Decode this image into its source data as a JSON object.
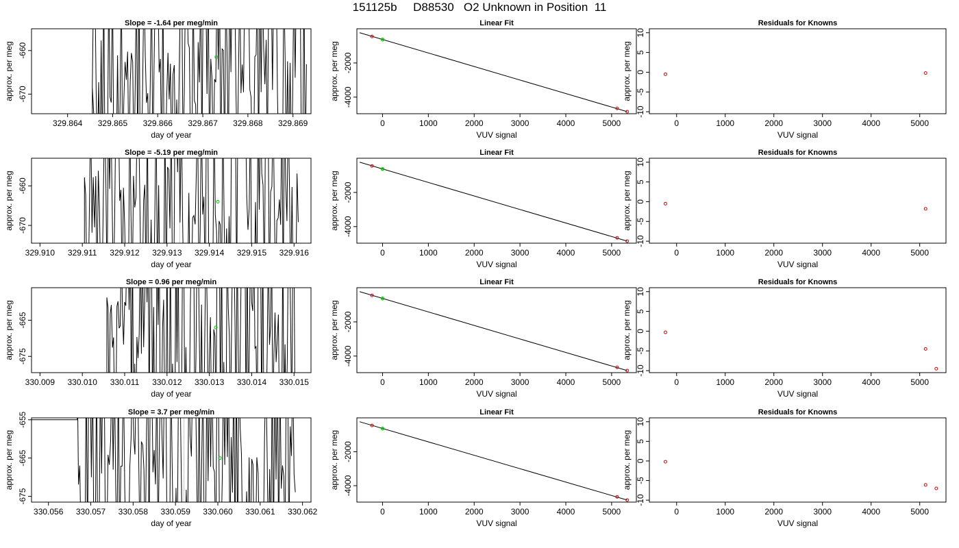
{
  "figure": {
    "title": "151125b     D88530   O2 Unknown in Position  11"
  },
  "chart_data": [
    {
      "row": 1,
      "col": 1,
      "type": "line",
      "title": "Slope =  -1.64  per meg/min",
      "xlabel": "day of year",
      "ylabel": "approx. per meg",
      "xlim": [
        329.8632,
        329.8694
      ],
      "ylim": [
        -674.5,
        -655
      ],
      "xticks": [
        329.864,
        329.865,
        329.866,
        329.867,
        329.868,
        329.869
      ],
      "xtick_labels": [
        "329.864",
        "329.865",
        "329.866",
        "329.867",
        "329.868",
        "329.869"
      ],
      "yticks": [
        -670,
        -660
      ],
      "ytick_labels": [
        "-670",
        "-660"
      ],
      "start": 329.86455,
      "end": 329.8693,
      "seed": 11,
      "initial_level": -674.5,
      "step_x": 329.86455,
      "step_top": -668.5,
      "step_end": 329.86458,
      "grey_line_x": 329.8665,
      "marker": {
        "x": 329.8673,
        "y": -661.5,
        "color": "#00cc00"
      }
    },
    {
      "row": 1,
      "col": 2,
      "type": "scatter+line",
      "title": "Linear Fit",
      "xlabel": "VUV signal",
      "ylabel": "approx. per meg",
      "xlim": [
        -560,
        5540
      ],
      "ylim": [
        -4970,
        0
      ],
      "xticks": [
        0,
        1000,
        2000,
        3000,
        4000,
        5000
      ],
      "xtick_labels": [
        "0",
        "1000",
        "2000",
        "3000",
        "4000",
        "5000"
      ],
      "yticks": [
        -4000,
        -2000
      ],
      "ytick_labels": [
        "-4000",
        "-2000"
      ],
      "line": {
        "x": [
          -500,
          5340
        ],
        "y": [
          -230,
          -4850
        ]
      },
      "knowns": {
        "x": [
          -230,
          5120,
          5340
        ],
        "y": [
          -450,
          -4660,
          -4850
        ]
      },
      "unknown": {
        "x": [
          0,
          0
        ],
        "y": [
          -620,
          -640
        ]
      }
    },
    {
      "row": 1,
      "col": 3,
      "type": "scatter",
      "title": "Residuals for Knowns",
      "xlabel": "VUV signal",
      "ylabel": "approx. per meg",
      "xlim": [
        -560,
        5540
      ],
      "ylim": [
        -10.5,
        11
      ],
      "xticks": [
        0,
        1000,
        2000,
        3000,
        4000,
        5000
      ],
      "xtick_labels": [
        "0",
        "1000",
        "2000",
        "3000",
        "4000",
        "5000"
      ],
      "yticks": [
        -10,
        -5,
        0,
        5,
        10
      ],
      "ytick_labels": [
        "-10",
        "-5",
        "0",
        "5",
        "10"
      ],
      "points": {
        "x": [
          -230,
          5120
        ],
        "y": [
          -0.5,
          -0.2
        ]
      }
    },
    {
      "row": 2,
      "col": 1,
      "type": "line",
      "title": "Slope =  -5.19  per meg/min",
      "xlabel": "day of year",
      "ylabel": "approx. per meg",
      "xlim": [
        329.9098,
        329.9164
      ],
      "ylim": [
        -674.5,
        -653
      ],
      "xticks": [
        329.91,
        329.911,
        329.912,
        329.913,
        329.914,
        329.915,
        329.916
      ],
      "xtick_labels": [
        "329.910",
        "329.911",
        "329.912",
        "329.913",
        "329.914",
        "329.915",
        "329.916"
      ],
      "yticks": [
        -670,
        -660
      ],
      "ytick_labels": [
        "-670",
        "-660"
      ],
      "start": 329.91105,
      "end": 329.9161,
      "seed": 23,
      "initial_level": -674.5,
      "grey_line_x": 329.9133,
      "marker": {
        "x": 329.9142,
        "y": -664,
        "color": "#00cc00"
      }
    },
    {
      "row": 2,
      "col": 2,
      "type": "scatter+line",
      "title": "Linear Fit",
      "xlabel": "VUV signal",
      "ylabel": "approx. per meg",
      "xlim": [
        -560,
        5540
      ],
      "ylim": [
        -4970,
        0
      ],
      "xticks": [
        0,
        1000,
        2000,
        3000,
        4000,
        5000
      ],
      "xtick_labels": [
        "0",
        "1000",
        "2000",
        "3000",
        "4000",
        "5000"
      ],
      "yticks": [
        -4000,
        -2000
      ],
      "ytick_labels": [
        "-4000",
        "-2000"
      ],
      "line": {
        "x": [
          -500,
          5340
        ],
        "y": [
          -230,
          -4850
        ]
      },
      "knowns": {
        "x": [
          -230,
          5120,
          5340
        ],
        "y": [
          -450,
          -4660,
          -4850
        ]
      },
      "unknown": {
        "x": [
          0,
          0
        ],
        "y": [
          -620,
          -640
        ]
      }
    },
    {
      "row": 2,
      "col": 3,
      "type": "scatter",
      "title": "Residuals for Knowns",
      "xlabel": "VUV signal",
      "ylabel": "approx. per meg",
      "xlim": [
        -560,
        5540
      ],
      "ylim": [
        -10.5,
        11
      ],
      "xticks": [
        0,
        1000,
        2000,
        3000,
        4000,
        5000
      ],
      "xtick_labels": [
        "0",
        "1000",
        "2000",
        "3000",
        "4000",
        "5000"
      ],
      "yticks": [
        -10,
        -5,
        0,
        5,
        10
      ],
      "ytick_labels": [
        "-10",
        "-5",
        "0",
        "5",
        "10"
      ],
      "points": {
        "x": [
          -230,
          5120
        ],
        "y": [
          -0.5,
          -1.8
        ]
      }
    },
    {
      "row": 3,
      "col": 1,
      "type": "line",
      "title": "Slope =  0.96  per meg/min",
      "xlabel": "day of year",
      "ylabel": "approx. per meg",
      "xlim": [
        330.0088,
        330.0154
      ],
      "ylim": [
        -679.5,
        -656
      ],
      "xticks": [
        330.009,
        330.01,
        330.011,
        330.012,
        330.013,
        330.014,
        330.015
      ],
      "xtick_labels": [
        "330.009",
        "330.010",
        "330.011",
        "330.012",
        "330.013",
        "330.014",
        "330.015"
      ],
      "yticks": [
        -675,
        -665
      ],
      "ytick_labels": [
        "-675",
        "-665"
      ],
      "start": 330.01058,
      "end": 330.01505,
      "seed": 37,
      "initial_level": -679.5,
      "grey_line_x": 330.0122,
      "marker": {
        "x": 330.01315,
        "y": -667,
        "color": "#00cc00"
      }
    },
    {
      "row": 3,
      "col": 2,
      "type": "scatter+line",
      "title": "Linear Fit",
      "xlabel": "VUV signal",
      "ylabel": "approx. per meg",
      "xlim": [
        -560,
        5540
      ],
      "ylim": [
        -4970,
        0
      ],
      "xticks": [
        0,
        1000,
        2000,
        3000,
        4000,
        5000
      ],
      "xtick_labels": [
        "0",
        "1000",
        "2000",
        "3000",
        "4000",
        "5000"
      ],
      "yticks": [
        -4000,
        -2000
      ],
      "ytick_labels": [
        "-4000",
        "-2000"
      ],
      "line": {
        "x": [
          -500,
          5340
        ],
        "y": [
          -230,
          -4850
        ]
      },
      "knowns": {
        "x": [
          -230,
          5120,
          5340
        ],
        "y": [
          -450,
          -4660,
          -4850
        ]
      },
      "unknown": {
        "x": [
          0,
          0
        ],
        "y": [
          -620,
          -640
        ]
      }
    },
    {
      "row": 3,
      "col": 3,
      "type": "scatter",
      "title": "Residuals for Knowns",
      "xlabel": "VUV signal",
      "ylabel": "approx. per meg",
      "xlim": [
        -560,
        5540
      ],
      "ylim": [
        -10.5,
        11
      ],
      "xticks": [
        0,
        1000,
        2000,
        3000,
        4000,
        5000
      ],
      "xtick_labels": [
        "0",
        "1000",
        "2000",
        "3000",
        "4000",
        "5000"
      ],
      "yticks": [
        -10,
        -5,
        0,
        5,
        10
      ],
      "ytick_labels": [
        "-10",
        "-5",
        "0",
        "5",
        "10"
      ],
      "points": {
        "x": [
          -230,
          5120,
          5340
        ],
        "y": [
          -0.3,
          -4.5,
          -9.5
        ]
      }
    },
    {
      "row": 4,
      "col": 1,
      "type": "line",
      "title": "Slope =  3.7  per meg/min",
      "xlabel": "day of year",
      "ylabel": "approx. per meg",
      "xlim": [
        330.0556,
        330.0622
      ],
      "ylim": [
        -676.5,
        -654.5
      ],
      "xticks": [
        330.056,
        330.057,
        330.058,
        330.059,
        330.06,
        330.061,
        330.062
      ],
      "xtick_labels": [
        "330.056",
        "330.057",
        "330.058",
        "330.059",
        "330.060",
        "330.061",
        "330.062"
      ],
      "yticks": [
        -675,
        -665,
        -655
      ],
      "ytick_labels": [
        "-675",
        "-665",
        "-655"
      ],
      "start": 330.05668,
      "end": 330.06183,
      "seed": 53,
      "initial_level": -655,
      "grey_line_x": 330.0592,
      "marker": {
        "x": 330.06005,
        "y": -665,
        "color": "#00cc00"
      }
    },
    {
      "row": 4,
      "col": 2,
      "type": "scatter+line",
      "title": "Linear Fit",
      "xlabel": "VUV signal",
      "ylabel": "approx. per meg",
      "xlim": [
        -560,
        5540
      ],
      "ylim": [
        -4970,
        0
      ],
      "xticks": [
        0,
        1000,
        2000,
        3000,
        4000,
        5000
      ],
      "xtick_labels": [
        "0",
        "1000",
        "2000",
        "3000",
        "4000",
        "5000"
      ],
      "yticks": [
        -4000,
        -2000
      ],
      "ytick_labels": [
        "-4000",
        "-2000"
      ],
      "line": {
        "x": [
          -500,
          5340
        ],
        "y": [
          -230,
          -4850
        ]
      },
      "knowns": {
        "x": [
          -230,
          5120,
          5340
        ],
        "y": [
          -450,
          -4660,
          -4850
        ]
      },
      "unknown": {
        "x": [
          0,
          0
        ],
        "y": [
          -620,
          -640
        ]
      }
    },
    {
      "row": 4,
      "col": 3,
      "type": "scatter",
      "title": "Residuals for Knowns",
      "xlabel": "VUV signal",
      "ylabel": "approx. per meg",
      "xlim": [
        -560,
        5540
      ],
      "ylim": [
        -10.5,
        11
      ],
      "xticks": [
        0,
        1000,
        2000,
        3000,
        4000,
        5000
      ],
      "xtick_labels": [
        "0",
        "1000",
        "2000",
        "3000",
        "4000",
        "5000"
      ],
      "yticks": [
        -10,
        -5,
        0,
        5,
        10
      ],
      "ytick_labels": [
        "-10",
        "-5",
        "0",
        "5",
        "10"
      ],
      "points": {
        "x": [
          -230,
          5120,
          5340
        ],
        "y": [
          -0.2,
          -6.1,
          -7.0
        ]
      }
    }
  ]
}
